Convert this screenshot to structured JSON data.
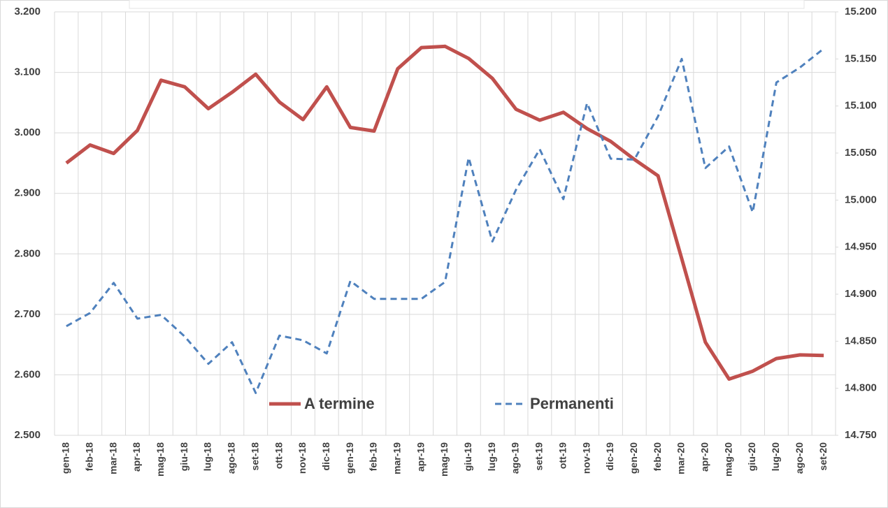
{
  "chart_data": {
    "type": "line",
    "categories": [
      "gen-18",
      "feb-18",
      "mar-18",
      "apr-18",
      "mag-18",
      "giu-18",
      "lug-18",
      "ago-18",
      "set-18",
      "ott-18",
      "nov-18",
      "dic-18",
      "gen-19",
      "feb-19",
      "mar-19",
      "apr-19",
      "mag-19",
      "giu-19",
      "lug-19",
      "ago-19",
      "set-19",
      "ott-19",
      "nov-19",
      "dic-19",
      "gen-20",
      "feb-20",
      "mar-20",
      "apr-20",
      "mag-20",
      "giu-20",
      "lug-20",
      "ago-20",
      "set-20"
    ],
    "series": [
      {
        "name": "A termine",
        "color": "#c0504d",
        "dash": false,
        "values": [
          2950,
          2980,
          2966,
          3004,
          3087,
          3076,
          3040,
          3067,
          3097,
          3051,
          3022,
          3076,
          3009,
          3003,
          3106,
          3141,
          3143,
          3123,
          3090,
          3039,
          3021,
          3034,
          3007,
          2986,
          2956,
          2929,
          2792,
          2654,
          2593,
          2606,
          2627,
          2633,
          2632
        ]
      },
      {
        "name": "Permanenti",
        "color": "#4f81bd",
        "dash": true,
        "axis": "y2",
        "values": [
          14866,
          14880,
          14912,
          14874,
          14878,
          14855,
          14826,
          14849,
          14795,
          14856,
          14851,
          14837,
          14914,
          14895,
          14895,
          14895,
          14913,
          15045,
          14956,
          15011,
          15054,
          15001,
          15103,
          15044,
          15043,
          15089,
          15150,
          15034,
          15057,
          14987,
          15125,
          15141,
          15161
        ]
      }
    ],
    "ylim": [
      2500,
      3200
    ],
    "yticks": [
      {
        "value": 2500,
        "label": "2.500"
      },
      {
        "value": 2600,
        "label": "2.600"
      },
      {
        "value": 2700,
        "label": "2.700"
      },
      {
        "value": 2800,
        "label": "2.800"
      },
      {
        "value": 2900,
        "label": "2.900"
      },
      {
        "value": 3000,
        "label": "3.000"
      },
      {
        "value": 3100,
        "label": "3.100"
      },
      {
        "value": 3200,
        "label": "3.200"
      }
    ],
    "y2lim": [
      14750,
      15200
    ],
    "y2ticks": [
      {
        "value": 14750,
        "label": "14.750"
      },
      {
        "value": 14800,
        "label": "14.800"
      },
      {
        "value": 14850,
        "label": "14.850"
      },
      {
        "value": 14900,
        "label": "14.900"
      },
      {
        "value": 14950,
        "label": "14.950"
      },
      {
        "value": 15000,
        "label": "15.000"
      },
      {
        "value": 15050,
        "label": "15.050"
      },
      {
        "value": 15100,
        "label": "15.100"
      },
      {
        "value": 15150,
        "label": "15.150"
      },
      {
        "value": 15200,
        "label": "15.200"
      }
    ],
    "grid": true
  }
}
